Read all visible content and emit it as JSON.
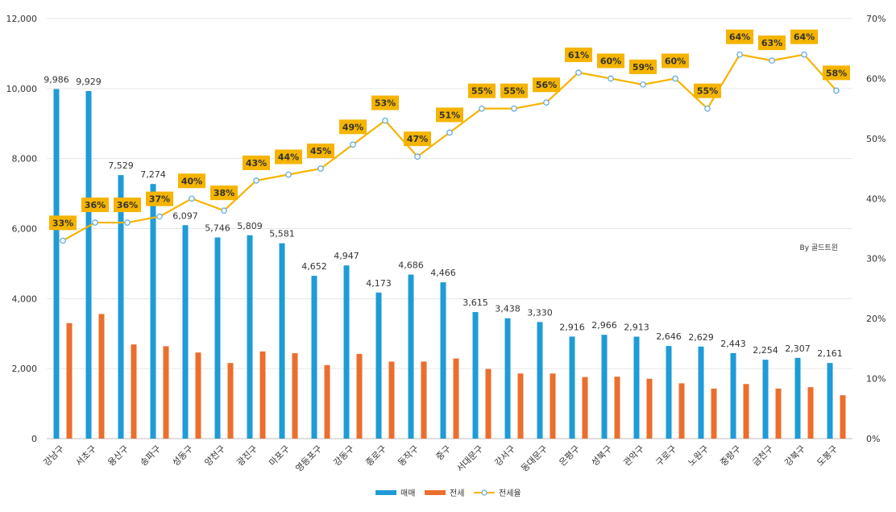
{
  "chart_data": {
    "type": "bar",
    "categories": [
      "강남구",
      "서초구",
      "용산구",
      "송파구",
      "성동구",
      "양천구",
      "광진구",
      "마포구",
      "영등포구",
      "강동구",
      "종로구",
      "동작구",
      "중구",
      "서대문구",
      "강서구",
      "동대문구",
      "은평구",
      "성북구",
      "관악구",
      "구로구",
      "노원구",
      "중랑구",
      "금천구",
      "강북구",
      "도봉구"
    ],
    "series": [
      {
        "name": "매매",
        "type": "bar",
        "axis": "left",
        "color": "#1f9bd7",
        "values": [
          9986,
          9929,
          7529,
          7274,
          6097,
          5746,
          5809,
          5581,
          4652,
          4947,
          4173,
          4686,
          4466,
          3615,
          3438,
          3330,
          2916,
          2966,
          2913,
          2646,
          2629,
          2443,
          2254,
          2307,
          2161
        ]
      },
      {
        "name": "전세",
        "type": "bar",
        "axis": "left",
        "color": "#ec6e2d",
        "values": [
          3300,
          3560,
          2690,
          2640,
          2460,
          2160,
          2490,
          2440,
          2100,
          2420,
          2200,
          2200,
          2290,
          1990,
          1860,
          1860,
          1760,
          1770,
          1710,
          1580,
          1430,
          1560,
          1430,
          1470,
          1240
        ]
      },
      {
        "name": "전세율",
        "type": "line",
        "axis": "right",
        "color": "#f5b400",
        "values": [
          33,
          36,
          36,
          37,
          40,
          38,
          43,
          44,
          45,
          49,
          53,
          47,
          51,
          55,
          55,
          56,
          61,
          60,
          59,
          60,
          55,
          64,
          63,
          64,
          58
        ]
      }
    ],
    "bar_labels": [
      "9,986",
      "9,929",
      "7,529",
      "7,274",
      "6,097",
      "5,746",
      "5,809",
      "5,581",
      "4,652",
      "4,947",
      "4,173",
      "4,686",
      "4,466",
      "3,615",
      "3,438",
      "3,330",
      "2,916",
      "2,966",
      "2,913",
      "2,646",
      "2,629",
      "2,443",
      "2,254",
      "2,307",
      "2,161"
    ],
    "line_labels": [
      "33%",
      "36%",
      "36%",
      "37%",
      "40%",
      "38%",
      "43%",
      "44%",
      "45%",
      "49%",
      "53%",
      "47%",
      "51%",
      "55%",
      "55%",
      "56%",
      "61%",
      "60%",
      "59%",
      "60%",
      "55%",
      "64%",
      "63%",
      "64%",
      "58%"
    ],
    "yleft": {
      "range": [
        0,
        12000
      ],
      "ticks": [
        "0",
        "2,000",
        "4,000",
        "6,000",
        "8,000",
        "10,000",
        "12,000"
      ]
    },
    "yright": {
      "range": [
        0,
        70
      ],
      "ticks": [
        "0%",
        "10%",
        "20%",
        "30%",
        "40%",
        "50%",
        "60%",
        "70%"
      ]
    },
    "grid": true,
    "legend": "bottom-center",
    "annotation": "By 골드트윈"
  }
}
